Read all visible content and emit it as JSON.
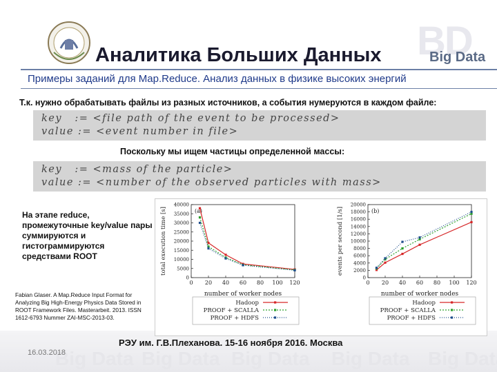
{
  "slide": {
    "title": "Аналитика Больших Данных",
    "brand_text": "Big Data",
    "brand_mark": "BD",
    "subtitle": "Примеры заданий для Map.Reduce. Анализ данных в физике высоких энергий",
    "line1": "Т.к. нужно обрабатывать файлы из разных источников, а события нумеруются в каждом файле:",
    "code1": [
      "key   := <file path of the event to be processed>",
      "value := <event number in file>"
    ],
    "line2": "Поскольку мы ищем частицы определенной массы:",
    "code2": [
      "key   := <mass of the particle>",
      "value := <number of the observed particles with mass>"
    ],
    "reduce_text": "На этапе reduce, промежуточные key/value пары суммируются и гистограммируются средствами ROOT",
    "citation": "Fabian Glaser. A Map.Reduce Input Format for Analyzing Big High-Energy Physics Data Stored in ROOT Framework Files. Masterarbeit. 2013. ISSN 1612-6793 Nummer ZAI-MSC-2013-03.",
    "footer": "РЭУ им. Г.В.Плеханова. 15-16 ноября 2016. Москва",
    "date": "16.03.2018",
    "watermark_word": "Big Data"
  },
  "chart_data": [
    {
      "type": "line",
      "panel_label": "(a)",
      "ylabel": "total execution time [s]",
      "xlabel": "number of worker nodes",
      "xlim": [
        0,
        120
      ],
      "ylim": [
        0,
        40000
      ],
      "xticks": [
        0,
        20,
        40,
        60,
        80,
        100,
        120
      ],
      "yticks": [
        0,
        5000,
        10000,
        15000,
        20000,
        25000,
        30000,
        35000,
        40000
      ],
      "series": [
        {
          "name": "Hadoop",
          "color": "#d62728",
          "dash": "",
          "x": [
            10,
            20,
            40,
            60,
            120
          ],
          "y": [
            38000,
            19000,
            12500,
            7500,
            4500
          ]
        },
        {
          "name": "PROOF + SCALLA",
          "color": "#2ca02c",
          "dash": "2,2",
          "x": [
            10,
            20,
            40,
            60,
            120
          ],
          "y": [
            33000,
            17000,
            11000,
            7000,
            4200
          ]
        },
        {
          "name": "PROOF + HDFS",
          "color": "#1f4e8c",
          "dash": "1,2",
          "x": [
            10,
            20,
            40,
            60,
            120
          ],
          "y": [
            30000,
            16000,
            10500,
            6800,
            4000
          ]
        }
      ]
    },
    {
      "type": "line",
      "panel_label": "(b)",
      "ylabel": "events per second [1/s]",
      "xlabel": "number of worker nodes",
      "xlim": [
        0,
        120
      ],
      "ylim": [
        0,
        20000
      ],
      "xticks": [
        0,
        20,
        40,
        60,
        80,
        100,
        120
      ],
      "yticks": [
        0,
        2000,
        4000,
        6000,
        8000,
        10000,
        12000,
        14000,
        16000,
        18000,
        20000
      ],
      "series": [
        {
          "name": "Hadoop",
          "color": "#d62728",
          "dash": "",
          "x": [
            10,
            20,
            40,
            60,
            120
          ],
          "y": [
            2100,
            4100,
            6500,
            9000,
            15200
          ]
        },
        {
          "name": "PROOF + SCALLA",
          "color": "#2ca02c",
          "dash": "2,2",
          "x": [
            10,
            20,
            40,
            60,
            120
          ],
          "y": [
            2500,
            5000,
            8000,
            10500,
            17500
          ]
        },
        {
          "name": "PROOF + HDFS",
          "color": "#1f4e8c",
          "dash": "1,2",
          "x": [
            10,
            20,
            40,
            60,
            120
          ],
          "y": [
            2700,
            5300,
            9800,
            11000,
            18000
          ]
        }
      ]
    }
  ]
}
